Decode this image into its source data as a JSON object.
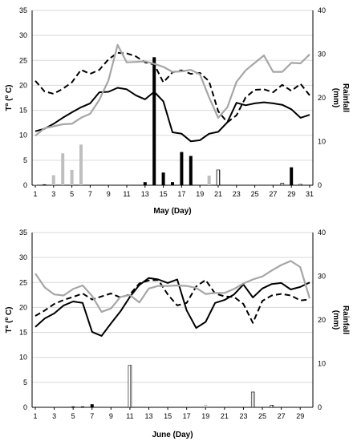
{
  "chart_data": [
    {
      "type": "line",
      "xlabel": "May  (Day)",
      "ylabel": "Tª (º C)",
      "y2label": "Rainfall\n(mm)",
      "x_ticks": [
        1,
        3,
        5,
        7,
        9,
        11,
        13,
        15,
        17,
        19,
        21,
        23,
        25,
        27,
        29,
        31
      ],
      "xlim": [
        1,
        31
      ],
      "ylim": [
        0,
        35
      ],
      "y_ticks": [
        0,
        5,
        10,
        15,
        20,
        25,
        30,
        35
      ],
      "y2lim": [
        0,
        40
      ],
      "y2_ticks": [
        0,
        10,
        20,
        30,
        40
      ],
      "grid": "horizontal",
      "colors": {
        "solid": "#000000",
        "dashed": "#000000",
        "gray": "#a6a6a6"
      },
      "series": [
        {
          "style": "solid",
          "x": [
            1,
            2,
            3,
            4,
            5,
            6,
            7,
            8,
            9,
            10,
            11,
            12,
            13,
            14,
            15,
            16,
            17,
            18,
            19,
            20,
            21,
            22,
            23,
            24,
            25,
            26,
            27,
            28,
            29,
            30,
            31
          ],
          "values": [
            10.8,
            11.3,
            12.3,
            13.5,
            14.6,
            15.6,
            16.4,
            18.6,
            18.7,
            19.5,
            19.2,
            18.0,
            17.2,
            18.7,
            16.8,
            10.6,
            10.3,
            8.8,
            9.0,
            10.3,
            10.7,
            12.6,
            16.5,
            16.0,
            16.4,
            16.6,
            16.4,
            16.1,
            15.2,
            13.5,
            14.1
          ]
        },
        {
          "style": "dashed",
          "x": [
            1,
            2,
            3,
            4,
            5,
            6,
            7,
            8,
            9,
            10,
            11,
            12,
            13,
            14,
            15,
            16,
            17,
            18,
            19,
            20,
            21,
            22,
            23,
            24,
            25,
            26,
            27,
            28,
            29,
            30,
            31
          ],
          "values": [
            20.9,
            18.8,
            18.3,
            19.3,
            20.6,
            23.1,
            22.3,
            23.1,
            25.2,
            26.5,
            26.4,
            25.8,
            24.6,
            24.2,
            20.6,
            22.6,
            23.0,
            22.3,
            22.5,
            20.8,
            14.8,
            12.6,
            14.0,
            17.6,
            19.1,
            19.2,
            18.6,
            20.1,
            18.9,
            20.3,
            18.0
          ]
        },
        {
          "style": "gray",
          "x": [
            1,
            2,
            3,
            4,
            5,
            6,
            7,
            8,
            9,
            10,
            11,
            12,
            13,
            14,
            15,
            16,
            17,
            18,
            19,
            20,
            21,
            22,
            23,
            24,
            25,
            26,
            27,
            28,
            29,
            30,
            31
          ],
          "values": [
            9.9,
            11.4,
            11.8,
            12.2,
            12.3,
            13.5,
            14.3,
            17.1,
            21.0,
            28.1,
            24.6,
            24.7,
            24.8,
            24.3,
            23.7,
            22.7,
            22.8,
            23.1,
            22.2,
            17.6,
            13.5,
            15.6,
            20.7,
            23.0,
            24.5,
            26.0,
            22.7,
            22.7,
            24.5,
            24.4,
            26.2
          ]
        },
        {
          "style": "bars-black",
          "axis": "y2",
          "x": [
            2,
            13,
            14,
            15,
            16,
            17,
            18,
            21,
            29
          ],
          "values": [
            0.2,
            0.7,
            29.3,
            2.9,
            0.7,
            7.6,
            6.7,
            0.2,
            4.1
          ]
        },
        {
          "style": "bars-gray",
          "axis": "y2",
          "x": [
            1,
            3,
            4,
            5,
            6,
            20
          ],
          "values": [
            0.2,
            2.3,
            7.3,
            3.5,
            9.3,
            2.2
          ]
        },
        {
          "style": "bars-hatched",
          "axis": "y2",
          "x": [
            21,
            28,
            30
          ],
          "values": [
            3.5,
            0.5,
            0.2
          ]
        }
      ]
    },
    {
      "type": "line",
      "xlabel": "June  (Day)",
      "ylabel": "Tª (º C)",
      "y2label": "Rainfall\n(mm)",
      "x_ticks": [
        1,
        3,
        5,
        7,
        9,
        11,
        13,
        15,
        17,
        19,
        21,
        23,
        25,
        27,
        29
      ],
      "xlim": [
        1,
        30
      ],
      "ylim": [
        0,
        35
      ],
      "y_ticks": [
        0,
        5,
        10,
        15,
        20,
        25,
        30,
        35
      ],
      "y2lim": [
        0,
        40
      ],
      "y2_ticks": [
        0,
        10,
        20,
        30,
        40
      ],
      "grid": "horizontal",
      "colors": {
        "solid": "#000000",
        "dashed": "#000000",
        "gray": "#a6a6a6"
      },
      "series": [
        {
          "style": "solid",
          "x": [
            1,
            2,
            3,
            4,
            5,
            6,
            7,
            8,
            9,
            10,
            11,
            12,
            13,
            14,
            15,
            16,
            17,
            18,
            19,
            20,
            21,
            22,
            23,
            24,
            25,
            26,
            27,
            28,
            29,
            30
          ],
          "values": [
            16.1,
            17.8,
            18.8,
            20.4,
            21.2,
            20.9,
            15.1,
            14.3,
            16.8,
            19.2,
            22.1,
            24.5,
            25.9,
            25.6,
            24.9,
            25.6,
            19.4,
            15.9,
            17.1,
            20.9,
            21.5,
            22.6,
            24.6,
            22.0,
            23.8,
            24.7,
            24.9,
            23.6,
            24.1,
            25.0
          ]
        },
        {
          "style": "dashed",
          "x": [
            1,
            2,
            3,
            4,
            5,
            6,
            7,
            8,
            9,
            10,
            11,
            12,
            13,
            14,
            15,
            16,
            17,
            18,
            19,
            20,
            21,
            22,
            23,
            24,
            25,
            26,
            27,
            28,
            29,
            30
          ],
          "values": [
            18.3,
            19.4,
            20.7,
            21.5,
            22.1,
            22.8,
            21.6,
            22.2,
            22.8,
            22.0,
            22.6,
            24.8,
            25.4,
            25.5,
            22.6,
            20.4,
            20.9,
            24.2,
            25.5,
            22.8,
            22.2,
            22.1,
            20.7,
            16.9,
            21.3,
            22.4,
            22.7,
            22.4,
            21.4,
            21.6
          ]
        },
        {
          "style": "gray",
          "x": [
            1,
            2,
            3,
            4,
            5,
            6,
            7,
            8,
            9,
            10,
            11,
            12,
            13,
            14,
            15,
            16,
            17,
            18,
            19,
            20,
            21,
            22,
            23,
            24,
            25,
            26,
            27,
            28,
            29,
            30
          ],
          "values": [
            26.8,
            24.0,
            22.6,
            22.4,
            23.7,
            24.4,
            22.3,
            19.1,
            19.8,
            22.1,
            22.5,
            21.0,
            23.8,
            24.3,
            24.3,
            24.4,
            24.3,
            23.9,
            22.7,
            22.9,
            22.9,
            23.7,
            24.8,
            25.6,
            26.2,
            27.4,
            28.5,
            29.3,
            28.1,
            21.8
          ]
        },
        {
          "style": "bars-black",
          "axis": "y2",
          "x": [
            5,
            6,
            7
          ],
          "values": [
            0.2,
            0.2,
            0.7
          ]
        },
        {
          "style": "bars-gray",
          "axis": "y2",
          "x": [
            19
          ],
          "values": [
            0.5
          ]
        },
        {
          "style": "bars-hatched",
          "axis": "y2",
          "x": [
            11,
            24,
            26
          ],
          "values": [
            9.6,
            3.5,
            0.5
          ]
        }
      ]
    }
  ]
}
